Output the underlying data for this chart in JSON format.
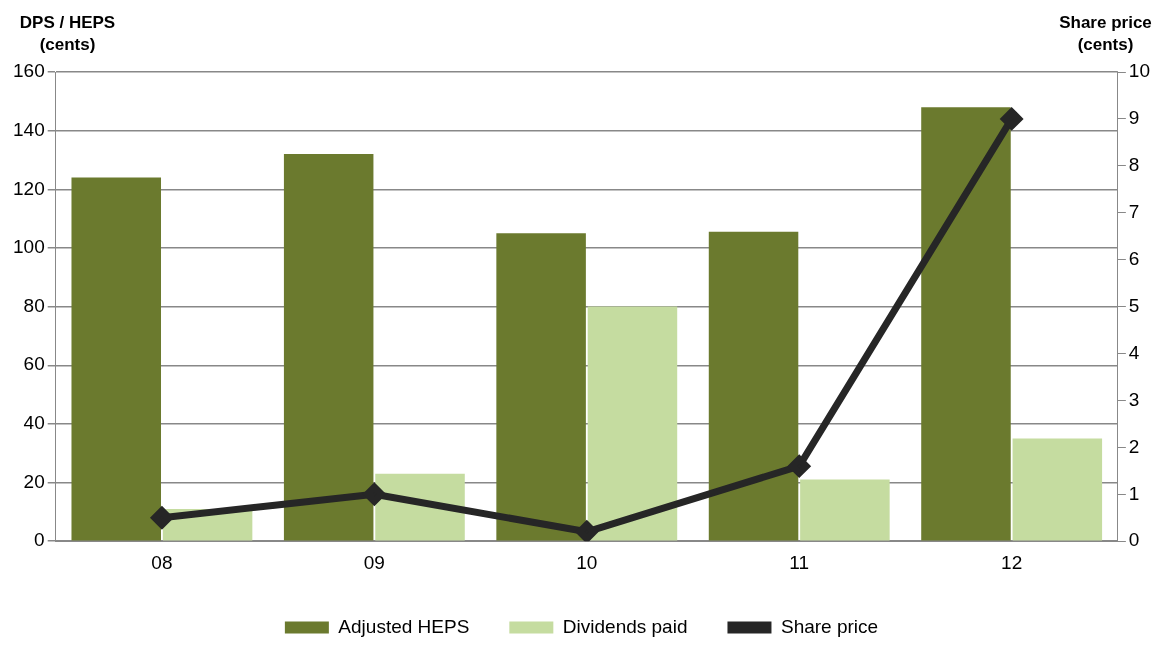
{
  "chart_data": {
    "type": "bar",
    "ylabel": "DPS / HEPS (cents)",
    "y2label": "Share price (cents)",
    "categories": [
      "08",
      "09",
      "10",
      "11",
      "12"
    ],
    "series": [
      {
        "name": "Adjusted HEPS",
        "color": "#6b7a2e",
        "values": [
          124,
          132,
          105,
          105.5,
          148
        ]
      },
      {
        "name": "Dividends paid",
        "color": "#c5dca0",
        "values": [
          11,
          23,
          80,
          21,
          35
        ]
      },
      {
        "name": "Share price",
        "type": "line",
        "axis": "y2",
        "color": "#262626",
        "values": [
          0.5,
          1.0,
          0.2,
          1.6,
          9.0
        ]
      }
    ],
    "ylim": [
      0,
      160
    ],
    "yticks": [
      0,
      20,
      40,
      60,
      80,
      100,
      120,
      140,
      160
    ],
    "y2lim": [
      0,
      10
    ],
    "y2ticks": [
      0,
      1,
      2,
      3,
      4,
      5,
      6,
      7,
      8,
      9,
      10
    ],
    "grid": "y",
    "legend": "bottom",
    "marker": "diamond",
    "line_style": "solid"
  }
}
